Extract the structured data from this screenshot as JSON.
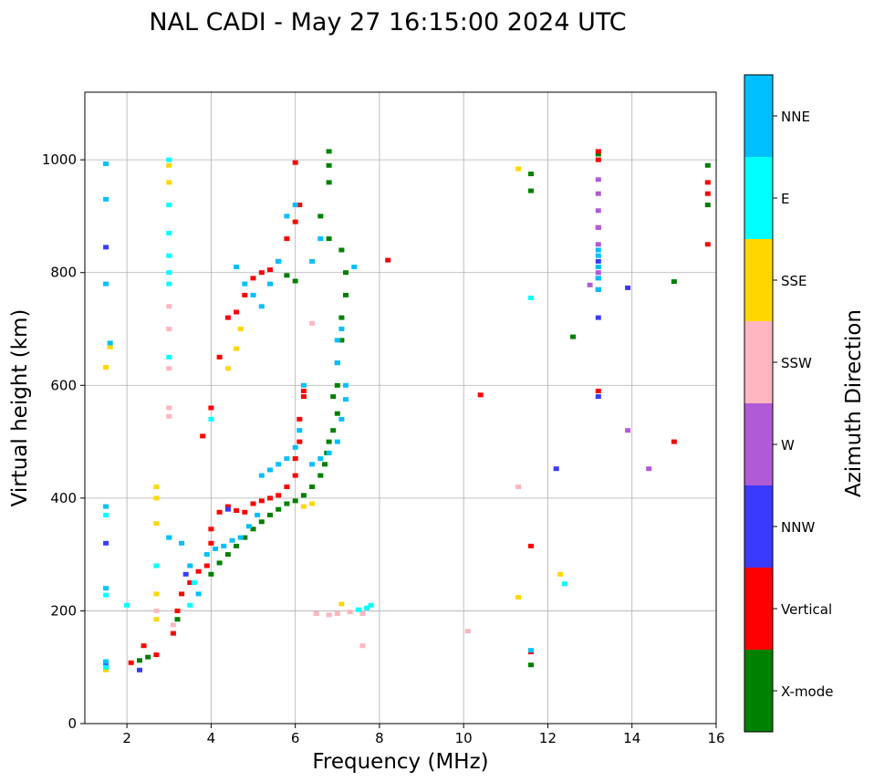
{
  "chart_data": {
    "type": "scatter",
    "title": "NAL CADI - May 27 16:15:00 2024 UTC",
    "xlabel": "Frequency (MHz)",
    "ylabel": "Virtual height (km)",
    "xlim": [
      1,
      16
    ],
    "ylim": [
      0,
      1120
    ],
    "xticks": [
      2,
      4,
      6,
      8,
      10,
      12,
      14,
      16
    ],
    "yticks": [
      0,
      200,
      400,
      600,
      800,
      1000
    ],
    "grid": true,
    "colorbar": {
      "label": "Azimuth Direction",
      "categories": [
        "X-mode",
        "Vertical",
        "NNW",
        "W",
        "SSW",
        "SSE",
        "E",
        "NNE"
      ],
      "colors": [
        "#008000",
        "#ff0000",
        "#3a3aff",
        "#b15ad6",
        "#ffb6c1",
        "#ffd700",
        "#00ffff",
        "#00bfff"
      ]
    },
    "series": [
      {
        "name": "X-mode",
        "points": [
          [
            2.3,
            112
          ],
          [
            2.5,
            118
          ],
          [
            3.2,
            185
          ],
          [
            4.0,
            265
          ],
          [
            4.2,
            285
          ],
          [
            4.4,
            300
          ],
          [
            4.6,
            315
          ],
          [
            4.8,
            330
          ],
          [
            5.0,
            345
          ],
          [
            5.2,
            358
          ],
          [
            5.4,
            370
          ],
          [
            5.6,
            380
          ],
          [
            5.8,
            390
          ],
          [
            6.0,
            395
          ],
          [
            6.2,
            405
          ],
          [
            6.4,
            420
          ],
          [
            6.6,
            440
          ],
          [
            6.7,
            460
          ],
          [
            6.75,
            480
          ],
          [
            6.8,
            500
          ],
          [
            6.9,
            520
          ],
          [
            7.0,
            550
          ],
          [
            6.9,
            580
          ],
          [
            7.0,
            600
          ],
          [
            7.0,
            640
          ],
          [
            7.1,
            680
          ],
          [
            7.1,
            720
          ],
          [
            7.2,
            760
          ],
          [
            7.2,
            800
          ],
          [
            7.1,
            840
          ],
          [
            6.8,
            860
          ],
          [
            6.6,
            900
          ],
          [
            6.8,
            960
          ],
          [
            6.8,
            990
          ],
          [
            6.8,
            1015
          ],
          [
            5.8,
            795
          ],
          [
            6.0,
            785
          ],
          [
            11.6,
            104
          ],
          [
            11.6,
            945
          ],
          [
            11.6,
            975
          ],
          [
            12.6,
            686
          ],
          [
            15.0,
            784
          ],
          [
            13.2,
            1010
          ],
          [
            15.8,
            990
          ],
          [
            15.8,
            920
          ]
        ]
      },
      {
        "name": "Vertical",
        "points": [
          [
            2.1,
            108
          ],
          [
            2.4,
            138
          ],
          [
            2.7,
            122
          ],
          [
            3.1,
            160
          ],
          [
            3.2,
            200
          ],
          [
            3.3,
            230
          ],
          [
            3.5,
            250
          ],
          [
            3.7,
            270
          ],
          [
            3.9,
            280
          ],
          [
            4.0,
            320
          ],
          [
            4.0,
            345
          ],
          [
            4.2,
            375
          ],
          [
            4.4,
            385
          ],
          [
            4.6,
            378
          ],
          [
            4.8,
            375
          ],
          [
            5.0,
            390
          ],
          [
            5.2,
            395
          ],
          [
            5.4,
            400
          ],
          [
            5.6,
            405
          ],
          [
            5.8,
            420
          ],
          [
            6.0,
            440
          ],
          [
            6.0,
            470
          ],
          [
            6.1,
            500
          ],
          [
            6.1,
            540
          ],
          [
            6.2,
            580
          ],
          [
            6.2,
            590
          ],
          [
            4.2,
            650
          ],
          [
            4.4,
            720
          ],
          [
            4.6,
            730
          ],
          [
            4.8,
            760
          ],
          [
            5.0,
            790
          ],
          [
            5.2,
            800
          ],
          [
            5.4,
            805
          ],
          [
            5.6,
            820
          ],
          [
            5.8,
            860
          ],
          [
            6.0,
            890
          ],
          [
            6.1,
            920
          ],
          [
            6.0,
            995
          ],
          [
            3.8,
            510
          ],
          [
            4.0,
            560
          ],
          [
            8.2,
            822
          ],
          [
            10.4,
            583
          ],
          [
            11.6,
            315
          ],
          [
            11.6,
            127
          ],
          [
            15.0,
            500
          ],
          [
            13.2,
            590
          ],
          [
            13.2,
            880
          ],
          [
            13.2,
            1000
          ],
          [
            13.2,
            1015
          ],
          [
            15.8,
            960
          ],
          [
            15.8,
            940
          ],
          [
            15.8,
            850
          ]
        ]
      },
      {
        "name": "NNW",
        "points": [
          [
            1.5,
            106
          ],
          [
            1.5,
            320
          ],
          [
            1.5,
            845
          ],
          [
            2.3,
            95
          ],
          [
            3.4,
            265
          ],
          [
            4.4,
            380
          ],
          [
            13.2,
            720
          ],
          [
            13.2,
            770
          ],
          [
            13.2,
            790
          ],
          [
            13.2,
            820
          ],
          [
            13.9,
            773
          ],
          [
            12.2,
            452
          ],
          [
            13.2,
            580
          ]
        ]
      },
      {
        "name": "W",
        "points": [
          [
            13.2,
            800
          ],
          [
            13.2,
            850
          ],
          [
            13.2,
            880
          ],
          [
            13.2,
            910
          ],
          [
            13.2,
            940
          ],
          [
            13.2,
            965
          ],
          [
            13.0,
            778
          ],
          [
            13.9,
            520
          ],
          [
            14.4,
            452
          ]
        ]
      },
      {
        "name": "SSW",
        "points": [
          [
            3.0,
            545
          ],
          [
            3.0,
            560
          ],
          [
            3.0,
            740
          ],
          [
            3.0,
            700
          ],
          [
            2.7,
            200
          ],
          [
            3.1,
            175
          ],
          [
            6.5,
            195
          ],
          [
            6.8,
            193
          ],
          [
            7.0,
            195
          ],
          [
            7.3,
            198
          ],
          [
            7.6,
            195
          ],
          [
            6.4,
            710
          ],
          [
            7.6,
            138
          ],
          [
            10.1,
            164
          ],
          [
            11.3,
            420
          ],
          [
            13.2,
            790
          ],
          [
            13.2,
            810
          ],
          [
            3.0,
            630
          ]
        ]
      },
      {
        "name": "SSE",
        "points": [
          [
            1.5,
            95
          ],
          [
            1.5,
            632
          ],
          [
            1.6,
            668
          ],
          [
            2.7,
            420
          ],
          [
            2.7,
            400
          ],
          [
            2.7,
            355
          ],
          [
            2.7,
            230
          ],
          [
            2.7,
            185
          ],
          [
            3.0,
            960
          ],
          [
            3.0,
            990
          ],
          [
            4.4,
            630
          ],
          [
            4.6,
            665
          ],
          [
            4.7,
            700
          ],
          [
            6.2,
            385
          ],
          [
            6.4,
            390
          ],
          [
            7.1,
            212
          ],
          [
            11.3,
            224
          ],
          [
            11.3,
            984
          ],
          [
            12.3,
            265
          ]
        ]
      },
      {
        "name": "E",
        "points": [
          [
            1.5,
            100
          ],
          [
            1.5,
            228
          ],
          [
            1.5,
            370
          ],
          [
            2.0,
            210
          ],
          [
            2.7,
            280
          ],
          [
            3.0,
            330
          ],
          [
            3.0,
            650
          ],
          [
            3.0,
            780
          ],
          [
            3.0,
            800
          ],
          [
            3.0,
            830
          ],
          [
            3.0,
            870
          ],
          [
            3.0,
            920
          ],
          [
            3.0,
            1000
          ],
          [
            3.5,
            210
          ],
          [
            3.6,
            250
          ],
          [
            4.0,
            540
          ],
          [
            7.5,
            202
          ],
          [
            7.7,
            205
          ],
          [
            7.8,
            210
          ],
          [
            11.6,
            755
          ],
          [
            12.4,
            248
          ]
        ]
      },
      {
        "name": "NNE",
        "points": [
          [
            1.5,
            110
          ],
          [
            1.5,
            240
          ],
          [
            1.5,
            385
          ],
          [
            1.6,
            675
          ],
          [
            1.5,
            780
          ],
          [
            1.5,
            930
          ],
          [
            1.5,
            993
          ],
          [
            3.0,
            330
          ],
          [
            3.3,
            320
          ],
          [
            3.5,
            280
          ],
          [
            3.7,
            230
          ],
          [
            3.9,
            300
          ],
          [
            4.1,
            310
          ],
          [
            4.3,
            315
          ],
          [
            4.5,
            325
          ],
          [
            4.7,
            330
          ],
          [
            4.9,
            350
          ],
          [
            5.1,
            370
          ],
          [
            5.2,
            440
          ],
          [
            5.4,
            450
          ],
          [
            5.6,
            460
          ],
          [
            5.8,
            470
          ],
          [
            6.0,
            490
          ],
          [
            6.1,
            520
          ],
          [
            6.2,
            600
          ],
          [
            6.4,
            460
          ],
          [
            6.6,
            470
          ],
          [
            6.8,
            480
          ],
          [
            7.0,
            500
          ],
          [
            7.1,
            540
          ],
          [
            7.2,
            575
          ],
          [
            7.2,
            600
          ],
          [
            7.0,
            640
          ],
          [
            7.0,
            680
          ],
          [
            7.1,
            700
          ],
          [
            4.6,
            810
          ],
          [
            4.8,
            780
          ],
          [
            5.0,
            760
          ],
          [
            5.2,
            740
          ],
          [
            5.4,
            780
          ],
          [
            5.6,
            820
          ],
          [
            5.8,
            900
          ],
          [
            6.0,
            920
          ],
          [
            6.4,
            820
          ],
          [
            6.6,
            860
          ],
          [
            7.4,
            810
          ],
          [
            11.6,
            130
          ],
          [
            13.2,
            770
          ],
          [
            13.2,
            790
          ],
          [
            13.2,
            810
          ],
          [
            13.2,
            830
          ],
          [
            13.2,
            840
          ]
        ]
      }
    ]
  }
}
